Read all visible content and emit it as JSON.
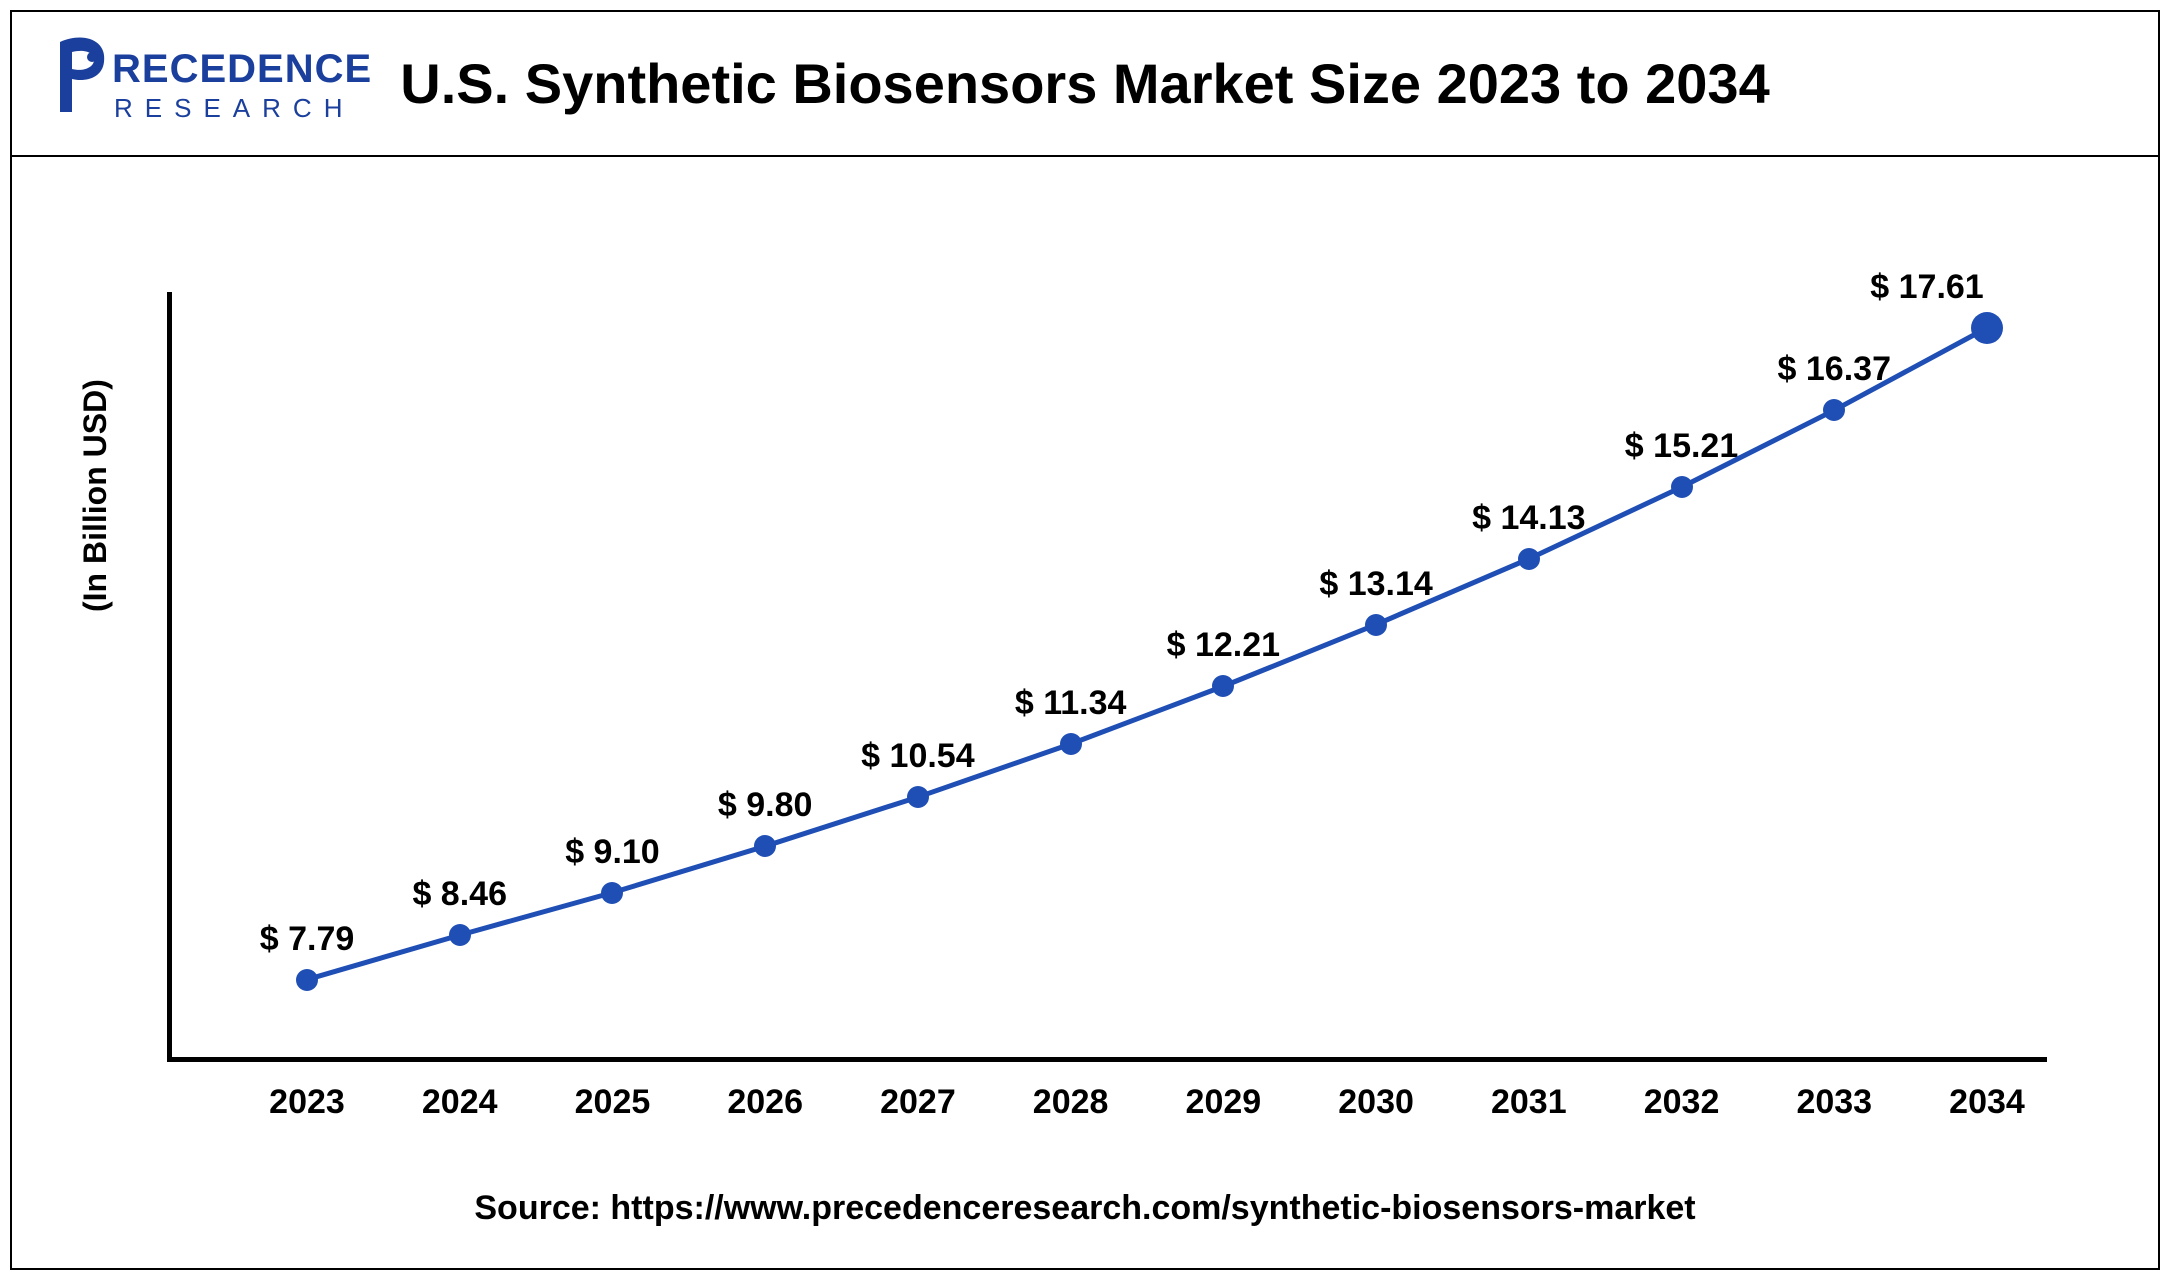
{
  "header": {
    "title": "U.S. Synthetic Biosensors Market Size 2023 to 2034",
    "logo_main": "PRECEDENCE",
    "logo_sub": "R E S E A R C H",
    "logo_color": "#1b3f9c"
  },
  "chart": {
    "type": "line",
    "ylabel": "(In Billion USD)",
    "ylim": [
      7.0,
      18.0
    ],
    "line_color": "#1f4fb5",
    "line_width": 5,
    "marker_color": "#1f4fb5",
    "marker_radius": 11,
    "marker_radius_last": 16,
    "background_color": "#ffffff",
    "axis_color": "#000000",
    "label_fontsize": 34,
    "label_fontweight": 700,
    "label_color": "#000000",
    "ylabel_fontsize": 32,
    "title_fontsize": 56,
    "categories": [
      "2023",
      "2024",
      "2025",
      "2026",
      "2027",
      "2028",
      "2029",
      "2030",
      "2031",
      "2032",
      "2033",
      "2034"
    ],
    "values": [
      7.79,
      8.46,
      9.1,
      9.8,
      10.54,
      11.34,
      12.21,
      13.14,
      14.13,
      15.21,
      16.37,
      17.61
    ],
    "value_labels": [
      "$ 7.79",
      "$ 8.46",
      "$ 9.10",
      "$ 9.80",
      "$ 10.54",
      "$ 11.34",
      "$ 12.21",
      "$ 13.14",
      "$ 14.13",
      "$ 15.21",
      "$ 16.37",
      "$ 17.61"
    ]
  },
  "source": "Source: https://www.precedenceresearch.com/synthetic-biosensors-market"
}
